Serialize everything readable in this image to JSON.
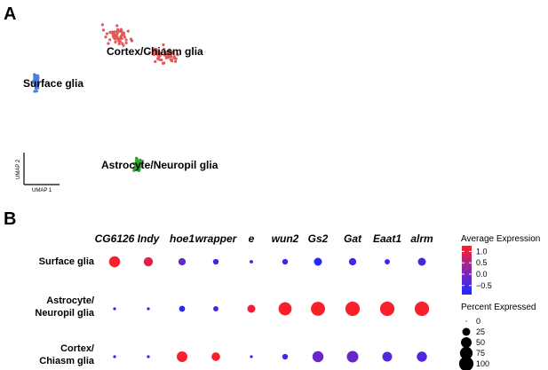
{
  "panels": {
    "a": "A",
    "b": "B"
  },
  "chart_data": [
    {
      "type": "scatter",
      "xlabel": "UMAP 1",
      "ylabel": "UMAP 2",
      "clusters": [
        {
          "name": "Cortex/Chiasm glia",
          "color": "#e05a5a"
        },
        {
          "name": "Surface glia",
          "color": "#4a7fe0"
        },
        {
          "name": "Astrocyte/Neuropil glia",
          "color": "#2da42d"
        }
      ]
    },
    {
      "type": "dot",
      "genes": [
        "CG6126",
        "Indy",
        "hoe1",
        "wrapper",
        "e",
        "wun2",
        "Gs2",
        "Gat",
        "Eaat1",
        "alrm"
      ],
      "rows": [
        {
          "label_lines": [
            "Surface glia"
          ],
          "avg_expression": [
            1.2,
            1.0,
            -0.2,
            -0.6,
            -0.8,
            -0.6,
            -1.0,
            -0.6,
            -0.7,
            -0.5
          ],
          "percent_expressed": [
            55,
            35,
            20,
            10,
            2,
            10,
            25,
            20,
            8,
            25
          ]
        },
        {
          "label_lines": [
            "Astrocyte/",
            "Neuropil glia"
          ],
          "avg_expression": [
            -0.8,
            -0.8,
            -1.0,
            -0.6,
            1.1,
            1.2,
            1.2,
            1.2,
            1.2,
            1.2
          ],
          "percent_expressed": [
            1,
            1,
            12,
            8,
            25,
            80,
            95,
            100,
            100,
            100
          ]
        },
        {
          "label_lines": [
            "Cortex/",
            "Chiasm glia"
          ],
          "avg_expression": [
            -0.8,
            -0.8,
            1.2,
            1.2,
            -0.8,
            -0.6,
            -0.2,
            -0.2,
            -0.4,
            -0.4
          ],
          "percent_expressed": [
            1,
            1,
            50,
            30,
            1,
            10,
            55,
            60,
            40,
            45
          ]
        }
      ],
      "color_legend": {
        "title": "Average Expression",
        "ticks": [
          "1.0",
          "0.5",
          "0.0",
          "−0.5"
        ],
        "tick_values": [
          1.0,
          0.5,
          0.0,
          -0.5
        ],
        "range": [
          -0.9,
          1.25
        ],
        "low_color": "#1f28ff",
        "mid_color": "#8a25b0",
        "high_color": "#ff1f22"
      },
      "size_legend": {
        "title": "Percent Expressed",
        "ticks": [
          "0",
          "25",
          "50",
          "75",
          "100"
        ],
        "tick_values": [
          0,
          25,
          50,
          75,
          100
        ]
      }
    }
  ]
}
